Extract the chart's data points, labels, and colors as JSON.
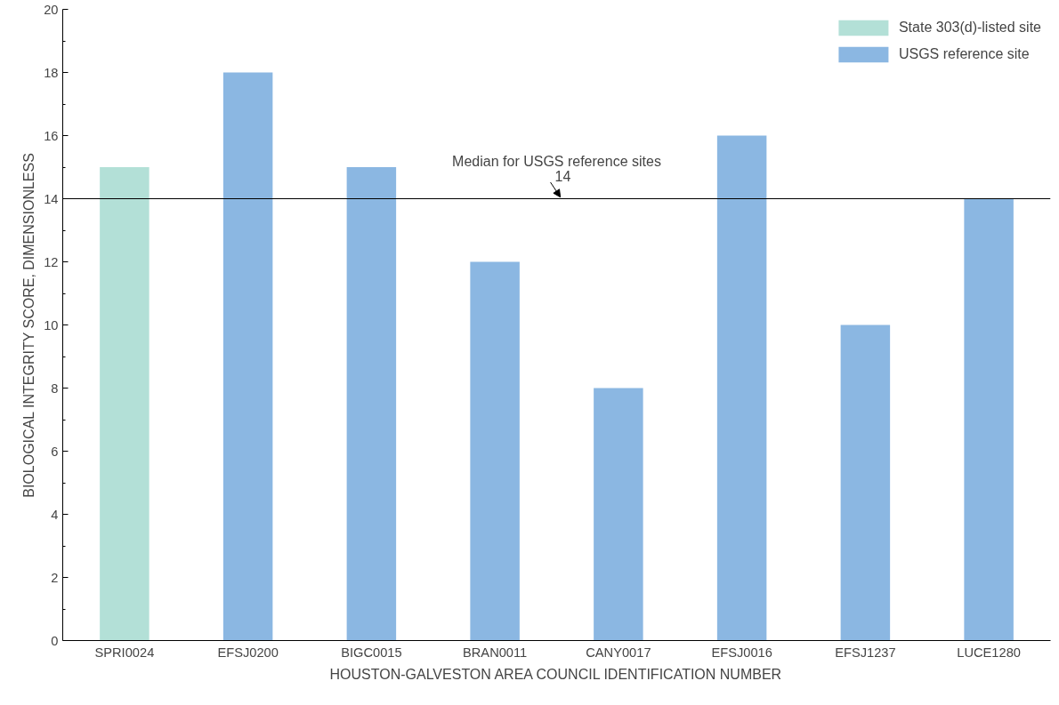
{
  "chart_data": {
    "type": "bar",
    "xlabel": "HOUSTON-GALVESTON AREA COUNCIL IDENTIFICATION NUMBER",
    "ylabel": "BIOLOGICAL INTEGRITY SCORE, DIMENSIONLESS",
    "categories": [
      "SPRI0024",
      "EFSJ0200",
      "BIGC0015",
      "BRAN0011",
      "CANY0017",
      "EFSJ0016",
      "EFSJ1237",
      "LUCE1280"
    ],
    "series": [
      {
        "name": "State 303(d)-listed site",
        "color": "#b3e0d7",
        "values": [
          15,
          null,
          null,
          null,
          null,
          null,
          null,
          null
        ]
      },
      {
        "name": "USGS reference site",
        "color": "#8bb7e2",
        "values": [
          null,
          18,
          15,
          12,
          8,
          16,
          10,
          14
        ]
      }
    ],
    "ylim": [
      0,
      20
    ],
    "yticks": [
      0,
      2,
      4,
      6,
      8,
      10,
      12,
      14,
      16,
      18,
      20
    ],
    "ref_lines": [
      {
        "axis": "y",
        "value": 14,
        "label": "Median for USGS reference sites",
        "color": "#000000"
      }
    ],
    "annotations": [
      {
        "text": "14",
        "y": 14
      }
    ],
    "grid": false,
    "legend": "top right"
  }
}
